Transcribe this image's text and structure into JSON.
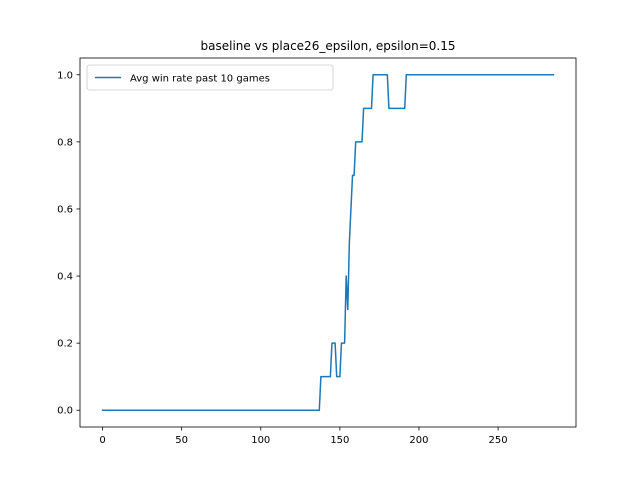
{
  "chart_data": {
    "type": "line",
    "title": "baseline vs place26_epsilon, epsilon=0.15",
    "xlabel": "",
    "ylabel": "",
    "xlim": [
      -14.25,
      299.25
    ],
    "ylim": [
      -0.05,
      1.05
    ],
    "xticks": [
      0,
      50,
      100,
      150,
      200,
      250
    ],
    "yticks": [
      0.0,
      0.2,
      0.4,
      0.6,
      0.8,
      1.0
    ],
    "xtick_labels": [
      "0",
      "50",
      "100",
      "150",
      "200",
      "250"
    ],
    "ytick_labels": [
      "0.0",
      "0.2",
      "0.4",
      "0.6",
      "0.8",
      "1.0"
    ],
    "grid": false,
    "legend_position": "upper left",
    "series": [
      {
        "name": "Avg win rate past 10 games",
        "color": "#1f77b4",
        "x": [
          0,
          137,
          138,
          144,
          145,
          147,
          148,
          150,
          151,
          153,
          154,
          155,
          156,
          157,
          158,
          159,
          160,
          161,
          162,
          164,
          165,
          170,
          171,
          172,
          180,
          181,
          191,
          192,
          285
        ],
        "y": [
          0.0,
          0.0,
          0.1,
          0.1,
          0.2,
          0.2,
          0.1,
          0.1,
          0.2,
          0.2,
          0.4,
          0.3,
          0.5,
          0.6,
          0.7,
          0.7,
          0.8,
          0.8,
          0.8,
          0.8,
          0.9,
          0.9,
          1.0,
          1.0,
          1.0,
          0.9,
          0.9,
          1.0,
          1.0
        ]
      }
    ]
  }
}
